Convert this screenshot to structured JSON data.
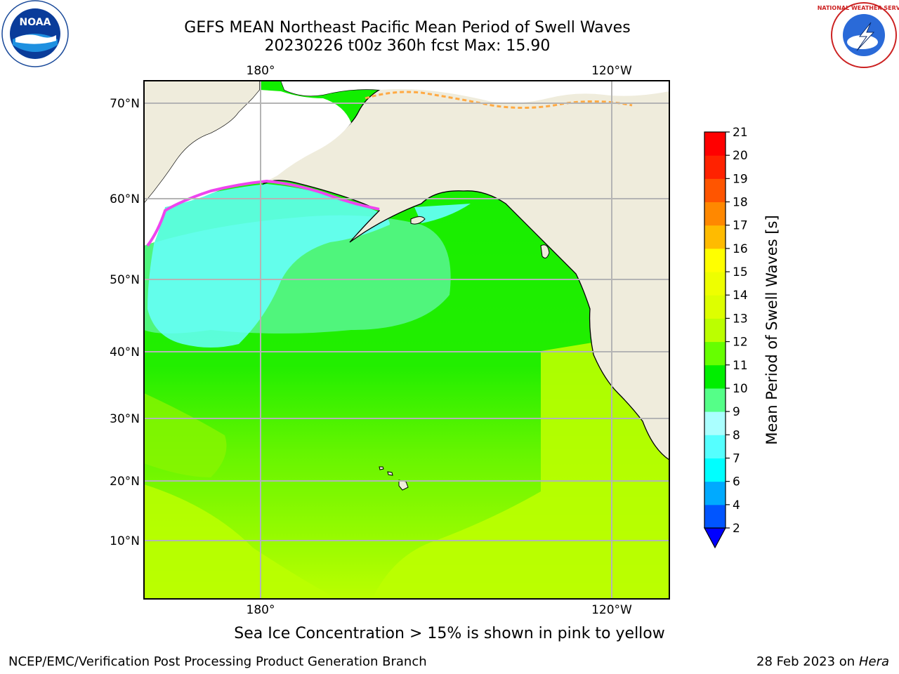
{
  "title": {
    "line1": "GEFS MEAN Northeast Pacific Mean Period of Swell Waves",
    "line2": "20230226 t00z 360h fcst   Max: 15.90"
  },
  "map": {
    "lat_labels": [
      "70°N",
      "60°N",
      "50°N",
      "40°N",
      "30°N",
      "20°N",
      "10°N"
    ],
    "lon_labels": [
      "180°",
      "120°W"
    ],
    "colors": {
      "ocean_cyan": "#66ffff",
      "ocean_lightgreen": "#55f58a",
      "ocean_green": "#11ee00",
      "ocean_yellowgreen": "#bbff00",
      "land": "#efecdc",
      "ice": "#ee44ee"
    }
  },
  "colorbar": {
    "label": "Mean Period of Swell Waves [s]",
    "ticks": [
      "2",
      "4",
      "6",
      "7",
      "8",
      "9",
      "10",
      "11",
      "12",
      "13",
      "14",
      "15",
      "16",
      "17",
      "18",
      "19",
      "20",
      "21"
    ],
    "colors": [
      "#0055ff",
      "#00aaff",
      "#00ffff",
      "#55ffff",
      "#aaffff",
      "#55ff88",
      "#00ee00",
      "#66ff00",
      "#bbff00",
      "#ddff00",
      "#eeff00",
      "#ffff00",
      "#ffbb00",
      "#ff8800",
      "#ff5500",
      "#ff2200",
      "#ff0000"
    ],
    "extend_color": "#0000ff"
  },
  "note": "Sea Ice Concentration > 15% is shown in pink to yellow",
  "footer": {
    "org": "NCEP/EMC/Verification Post Processing Product Generation Branch",
    "date": "28 Feb 2023 on",
    "host": "Hera"
  },
  "logos": {
    "noaa_text": "NOAA",
    "nws_text": "NATIONAL WEATHER SERVICE"
  }
}
